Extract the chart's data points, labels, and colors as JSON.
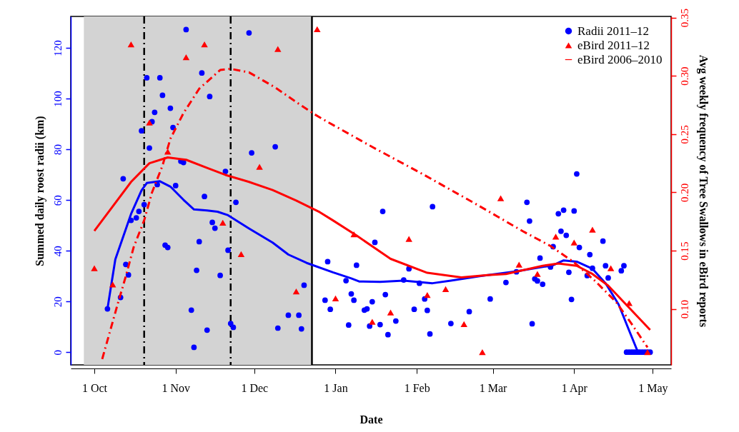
{
  "chart_data": {
    "type": "scatter",
    "xlabel": "Date",
    "ylabel": "Summed daily roost radii (km)",
    "y2label": "Avg weekly frequency of\nTree Swallows in eBird reports",
    "xlim": [
      "2011-09-22",
      "2012-05-08"
    ],
    "xticks": [
      {
        "value": "2011-10-01",
        "label": "1 Oct"
      },
      {
        "value": "2011-11-01",
        "label": "1 Nov"
      },
      {
        "value": "2011-12-01",
        "label": "1 Dec"
      },
      {
        "value": "2012-01-01",
        "label": "1 Jan"
      },
      {
        "value": "2012-02-01",
        "label": "1 Feb"
      },
      {
        "value": "2012-03-01",
        "label": "1 Mar"
      },
      {
        "value": "2012-04-01",
        "label": "1 Apr"
      },
      {
        "value": "2012-05-01",
        "label": "1 May"
      }
    ],
    "ylim": [
      -5,
      132.4
    ],
    "yticks": [
      0,
      20,
      40,
      60,
      80,
      100,
      120
    ],
    "y2lim": [
      0.052,
      0.351
    ],
    "y2ticks": [
      {
        "value": 0.1,
        "label": "0.10"
      },
      {
        "value": 0.15,
        "label": "0.15"
      },
      {
        "value": 0.2,
        "label": "0.20"
      },
      {
        "value": 0.25,
        "label": "0.25"
      },
      {
        "value": 0.3,
        "label": "0.30"
      },
      {
        "value": 0.35,
        "label": "0.35"
      }
    ],
    "grid": false,
    "legend": "top right",
    "bands": [
      {
        "axis": "x",
        "from": "2011-09-27",
        "to": "2011-12-23",
        "color": "#d3d3d3"
      }
    ],
    "ref_lines": [
      {
        "axis": "x",
        "value": "2011-10-20",
        "color": "#000000",
        "line_style": "dashed"
      },
      {
        "axis": "x",
        "value": "2011-11-22",
        "color": "#000000",
        "line_style": "dashed"
      },
      {
        "axis": "x",
        "value": "2011-12-23",
        "color": "#000000",
        "line_style": "solid"
      }
    ],
    "series": [
      {
        "name": "Radii 2011–12",
        "color": "#0000ff",
        "marker": "circle",
        "x": [
          "2011-10-06",
          "2011-10-11",
          "2011-10-12",
          "2011-10-13",
          "2011-10-14",
          "2011-10-15",
          "2011-10-17",
          "2011-10-18",
          "2011-10-19",
          "2011-10-20",
          "2011-10-21",
          "2011-10-22",
          "2011-10-23",
          "2011-10-24",
          "2011-10-25",
          "2011-10-26",
          "2011-10-27",
          "2011-10-28",
          "2011-10-29",
          "2011-10-30",
          "2011-10-31",
          "2011-11-01",
          "2011-11-03",
          "2011-11-04",
          "2011-11-05",
          "2011-11-07",
          "2011-11-08",
          "2011-11-09",
          "2011-11-10",
          "2011-11-11",
          "2011-11-12",
          "2011-11-13",
          "2011-11-14",
          "2011-11-15",
          "2011-11-16",
          "2011-11-18",
          "2011-11-20",
          "2011-11-21",
          "2011-11-22",
          "2011-11-23",
          "2011-11-24",
          "2011-11-29",
          "2011-11-30",
          "2011-12-09",
          "2011-12-10",
          "2011-12-14",
          "2011-12-18",
          "2011-12-19",
          "2011-12-20",
          "2011-12-28",
          "2011-12-29",
          "2011-12-30",
          "2012-01-05",
          "2012-01-06",
          "2012-01-07",
          "2012-01-08",
          "2012-01-09",
          "2012-01-12",
          "2012-01-13",
          "2012-01-14",
          "2012-01-15",
          "2012-01-16",
          "2012-01-18",
          "2012-01-19",
          "2012-01-20",
          "2012-01-21",
          "2012-01-24",
          "2012-01-27",
          "2012-01-29",
          "2012-01-31",
          "2012-02-02",
          "2012-02-04",
          "2012-02-05",
          "2012-02-06",
          "2012-02-07",
          "2012-02-14",
          "2012-02-21",
          "2012-02-29",
          "2012-03-06",
          "2012-03-10",
          "2012-03-14",
          "2012-03-15",
          "2012-03-16",
          "2012-03-17",
          "2012-03-18",
          "2012-03-19",
          "2012-03-20",
          "2012-03-23",
          "2012-03-24",
          "2012-03-26",
          "2012-03-27",
          "2012-03-28",
          "2012-03-29",
          "2012-03-30",
          "2012-03-31",
          "2012-04-01",
          "2012-04-02",
          "2012-04-03",
          "2012-04-06",
          "2012-04-07",
          "2012-04-08",
          "2012-04-12",
          "2012-04-13",
          "2012-04-14",
          "2012-04-19",
          "2012-04-20",
          "2012-04-21",
          "2012-04-22",
          "2012-04-23",
          "2012-04-24",
          "2012-04-25",
          "2012-04-26",
          "2012-04-27",
          "2012-04-28",
          "2012-04-29",
          "2012-04-30"
        ],
        "values": [
          17.1,
          21.6,
          68.4,
          34.6,
          30.5,
          52.0,
          53.0,
          55.5,
          87.3,
          58.2,
          108.2,
          80.5,
          90.9,
          94.6,
          66.1,
          108.2,
          101.3,
          42.2,
          41.3,
          96.2,
          88.6,
          65.7,
          75.3,
          74.8,
          127.2,
          16.6,
          1.9,
          32.3,
          43.6,
          110.1,
          61.4,
          8.7,
          100.8,
          51.2,
          48.9,
          30.3,
          71.3,
          40.2,
          11.3,
          9.8,
          59.1,
          125.9,
          78.6,
          81.0,
          9.5,
          14.6,
          14.6,
          9.2,
          26.4,
          20.5,
          35.7,
          16.9,
          28.2,
          10.7,
          23.0,
          20.5,
          34.3,
          16.6,
          17.1,
          10.3,
          19.9,
          43.3,
          10.9,
          55.5,
          22.7,
          6.9,
          12.3,
          28.5,
          32.9,
          16.9,
          27.2,
          21.0,
          16.5,
          7.2,
          57.4,
          11.3,
          16.0,
          21.0,
          27.5,
          31.7,
          59.1,
          51.7,
          11.2,
          28.9,
          28.1,
          37.1,
          26.8,
          33.6,
          41.6,
          54.6,
          47.7,
          56.0,
          46.1,
          31.5,
          20.8,
          55.7,
          70.3,
          41.3,
          30.2,
          38.5,
          33.1,
          43.8,
          34.1,
          29.3,
          32.1,
          34.1,
          0,
          0,
          0,
          0,
          0,
          0,
          0,
          0,
          0,
          0
        ]
      },
      {
        "type": "line",
        "color": "#0000ff",
        "line_style": "solid",
        "x": [
          "2011-10-06",
          "2011-10-09",
          "2011-10-15",
          "2011-10-19",
          "2011-10-21",
          "2011-10-26",
          "2011-10-30",
          "2011-11-04",
          "2011-11-08",
          "2011-11-13",
          "2011-11-17",
          "2011-11-21",
          "2011-11-29",
          "2011-12-08",
          "2011-12-14",
          "2011-12-21",
          "2011-12-31",
          "2012-01-07",
          "2012-01-10",
          "2012-01-18",
          "2012-01-27",
          "2012-02-07",
          "2012-02-14",
          "2012-02-25",
          "2012-03-10",
          "2012-03-24",
          "2012-03-28",
          "2012-04-02",
          "2012-04-08",
          "2012-04-13",
          "2012-04-18",
          "2012-04-22",
          "2012-04-25",
          "2012-04-26",
          "2012-04-30"
        ],
        "values": [
          17.1,
          36.6,
          54.5,
          63.8,
          66.7,
          67.4,
          65.3,
          60.1,
          56.3,
          55.9,
          55.4,
          54.0,
          48.8,
          43.2,
          38.5,
          35.2,
          31.5,
          29.1,
          27.9,
          27.7,
          28.2,
          27.2,
          28.2,
          30.0,
          31.9,
          34.3,
          36.2,
          35.7,
          32.9,
          27.2,
          18.8,
          8.5,
          0.9,
          0,
          0
        ]
      },
      {
        "name": "eBird 2011–12",
        "axis": "y2",
        "color": "#ff0000",
        "marker": "triangle",
        "x": [
          "2011-10-01",
          "2011-10-08",
          "2011-10-15",
          "2011-10-22",
          "2011-10-29",
          "2011-11-05",
          "2011-11-12",
          "2011-11-19",
          "2011-11-26",
          "2011-12-03",
          "2011-12-10",
          "2011-12-17",
          "2011-12-25",
          "2012-01-01",
          "2012-01-08",
          "2012-01-15",
          "2012-01-22",
          "2012-01-29",
          "2012-02-05",
          "2012-02-12",
          "2012-02-19",
          "2012-02-26",
          "2012-03-04",
          "2012-03-11",
          "2012-03-18",
          "2012-03-25",
          "2012-04-01",
          "2012-04-08",
          "2012-04-15",
          "2012-04-22",
          "2012-04-29"
        ],
        "values": [
          0.135,
          0.121,
          0.327,
          0.26,
          0.235,
          0.316,
          0.327,
          0.174,
          0.147,
          0.222,
          0.323,
          0.115,
          0.34,
          0.109,
          0.164,
          0.089,
          0.097,
          0.16,
          0.112,
          0.117,
          0.087,
          0.063,
          0.195,
          0.138,
          0.13,
          0.162,
          0.157,
          0.168,
          0.135,
          0.105,
          0.063
        ]
      },
      {
        "type": "line",
        "axis": "y2",
        "color": "#ff0000",
        "line_style": "solid",
        "x": [
          "2011-10-01",
          "2011-10-15",
          "2011-10-22",
          "2011-10-29",
          "2011-11-05",
          "2011-11-13",
          "2011-11-20",
          "2011-11-29",
          "2011-12-08",
          "2011-12-17",
          "2011-12-26",
          "2011-12-31",
          "2012-01-09",
          "2012-01-22",
          "2012-02-05",
          "2012-02-18",
          "2012-02-28",
          "2012-03-06",
          "2012-03-20",
          "2012-03-26",
          "2012-04-02",
          "2012-04-08",
          "2012-04-14",
          "2012-04-30"
        ],
        "values": [
          0.167,
          0.209,
          0.225,
          0.23,
          0.228,
          0.221,
          0.215,
          0.209,
          0.202,
          0.193,
          0.183,
          0.176,
          0.163,
          0.143,
          0.131,
          0.127,
          0.129,
          0.13,
          0.137,
          0.139,
          0.137,
          0.13,
          0.12,
          0.082
        ]
      },
      {
        "name": "eBird 2006–2010",
        "type": "line",
        "axis": "y2",
        "color": "#ff0000",
        "line_style": "dashed",
        "x": [
          "2011-10-04",
          "2011-10-07",
          "2011-10-10",
          "2011-10-13",
          "2011-10-16",
          "2011-10-20",
          "2011-10-23",
          "2011-10-27",
          "2011-10-30",
          "2011-11-04",
          "2011-11-10",
          "2011-11-18",
          "2011-11-22",
          "2011-11-29",
          "2011-12-09",
          "2011-12-18",
          "2011-12-24",
          "2011-12-27",
          "2012-01-15",
          "2012-02-03",
          "2012-02-22",
          "2012-03-03",
          "2012-03-13",
          "2012-03-23",
          "2012-04-01",
          "2012-04-09",
          "2012-04-17",
          "2012-04-23",
          "2012-04-29"
        ],
        "values": [
          0.057,
          0.081,
          0.105,
          0.128,
          0.153,
          0.176,
          0.2,
          0.223,
          0.246,
          0.268,
          0.289,
          0.305,
          0.306,
          0.303,
          0.29,
          0.276,
          0.267,
          0.263,
          0.239,
          0.216,
          0.192,
          0.179,
          0.166,
          0.154,
          0.14,
          0.124,
          0.106,
          0.087,
          0.067
        ]
      }
    ]
  }
}
